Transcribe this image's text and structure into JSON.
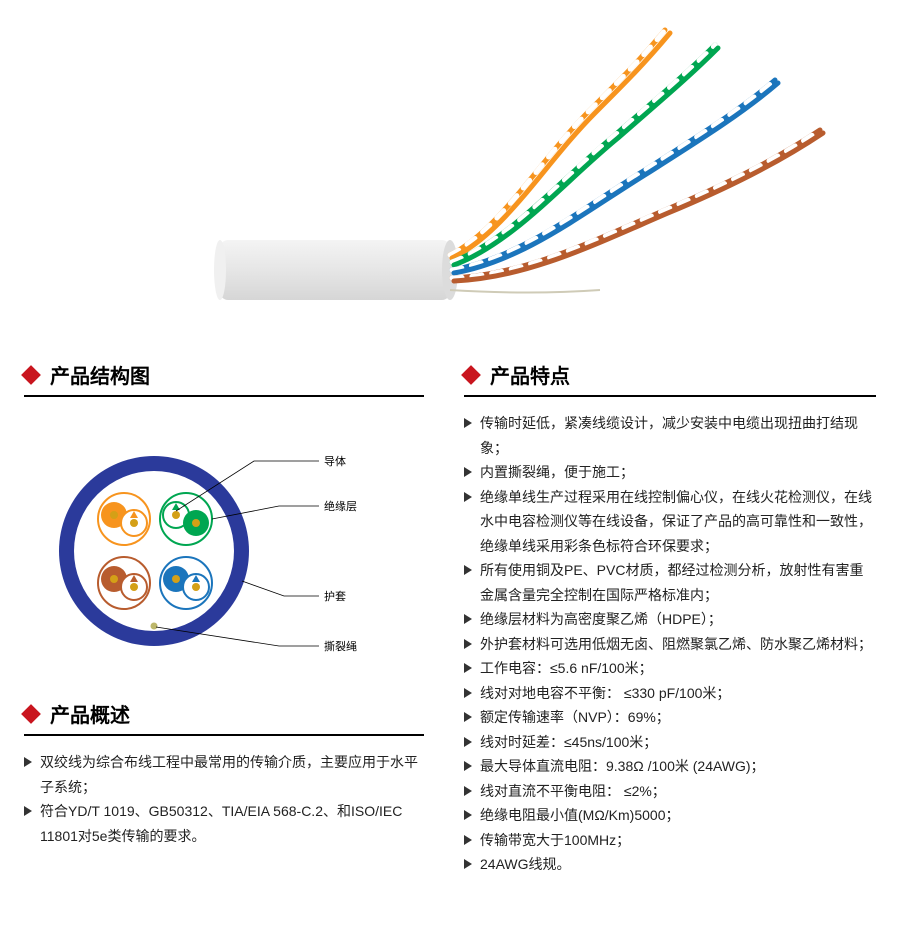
{
  "photo": {
    "jacket_color": "#e9e9e9",
    "pairs": [
      {
        "c1": "#f7941e",
        "c2": "#ffffff"
      },
      {
        "c1": "#00a651",
        "c2": "#ffffff"
      },
      {
        "c1": "#1b75bc",
        "c2": "#ffffff"
      },
      {
        "c1": "#b85c2e",
        "c2": "#ffffff"
      }
    ],
    "ripcord_color": "#d9d7c9"
  },
  "sections": {
    "structure_title": "产品结构图",
    "overview_title": "产品概述",
    "features_title": "产品特点"
  },
  "diagram": {
    "outer_ring_color": "#2b3a9b",
    "inner_bg": "#ffffff",
    "labels": {
      "conductor": "导体",
      "insulation": "绝缘层",
      "jacket": "护套",
      "ripcord": "撕裂绳"
    },
    "pairs": [
      {
        "body": "#f7941e",
        "accent": "#ffffff"
      },
      {
        "body": "#00a651",
        "accent": "#ffffff"
      },
      {
        "body": "#b85c2e",
        "accent": "#ffffff"
      },
      {
        "body": "#1b75bc",
        "accent": "#ffffff"
      }
    ],
    "label_fontsize": 11
  },
  "overview": [
    "双绞线为综合布线工程中最常用的传输介质，主要应用于水平子系统；",
    "符合YD/T 1019、GB50312、TIA/EIA 568-C.2、和ISO/IEC 11801对5e类传输的要求。"
  ],
  "features": [
    "传输时延低，紧凑线缆设计，减少安装中电缆出现扭曲打结现象；",
    "内置撕裂绳，便于施工；",
    "绝缘单线生产过程采用在线控制偏心仪，在线火花检测仪，在线水中电容检测仪等在线设备，保证了产品的高可靠性和一致性，绝缘单线采用彩条色标符合环保要求；",
    "所有使用铜及PE、PVC材质，都经过检测分析，放射性有害重金属含量完全控制在国际严格标准内；",
    "绝缘层材料为高密度聚乙烯（HDPE）；",
    "外护套材料可选用低烟无卤、阻燃聚氯乙烯、防水聚乙烯材料；",
    "工作电容：≤5.6 nF/100米；",
    "线对对地电容不平衡： ≤330 pF/100米；",
    "额定传输速率（NVP）：69%；",
    "线对时延差：≤45ns/100米；",
    "最大导体直流电阻：9.38Ω /100米 (24AWG)；",
    "线对直流不平衡电阻： ≤2%；",
    "绝缘电阻最小值(MΩ/Km)5000；",
    "传输带宽大于100MHz；",
    "24AWG线规。"
  ],
  "colors": {
    "accent_red": "#c9151e",
    "text": "#222222",
    "rule": "#000000"
  }
}
